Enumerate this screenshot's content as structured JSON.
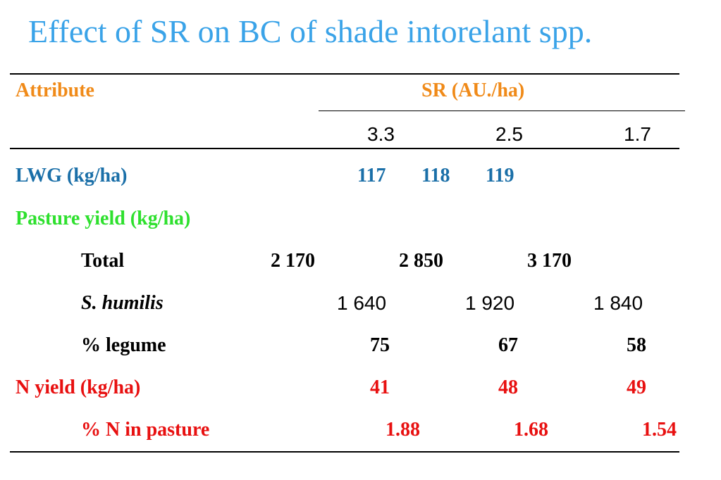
{
  "title": "Effect of SR on BC of shade intorelant spp.",
  "header": {
    "attribute": "Attribute",
    "sr": "SR (AU./ha)",
    "rates": [
      "3.3",
      "2.5",
      "1.7"
    ]
  },
  "rows": {
    "lwg": {
      "label": "LWG (kg/ha)",
      "values": [
        "117",
        "118",
        "119"
      ]
    },
    "pasture_yield": {
      "label": "Pasture yield (kg/ha)"
    },
    "total": {
      "label": "Total",
      "values": [
        "2 170",
        "2 850",
        "3 170"
      ]
    },
    "s_humilis": {
      "label": "S. humilis",
      "values": [
        "1 640",
        "1 920",
        "1 840"
      ]
    },
    "legume": {
      "label": "% legume",
      "values": [
        "75",
        "67",
        "58"
      ]
    },
    "n_yield": {
      "label": "N yield (kg/ha)",
      "values": [
        "41",
        "48",
        "49"
      ]
    },
    "n_pasture": {
      "label": "% N in pasture",
      "values": [
        "1.88",
        "1.68",
        "1.54"
      ]
    }
  },
  "colors": {
    "title": "#3aa3e8",
    "attribute": "#f08a18",
    "lwg": "#1a6fa8",
    "pasture": "#2ee02e",
    "n_yield": "#e81010"
  }
}
